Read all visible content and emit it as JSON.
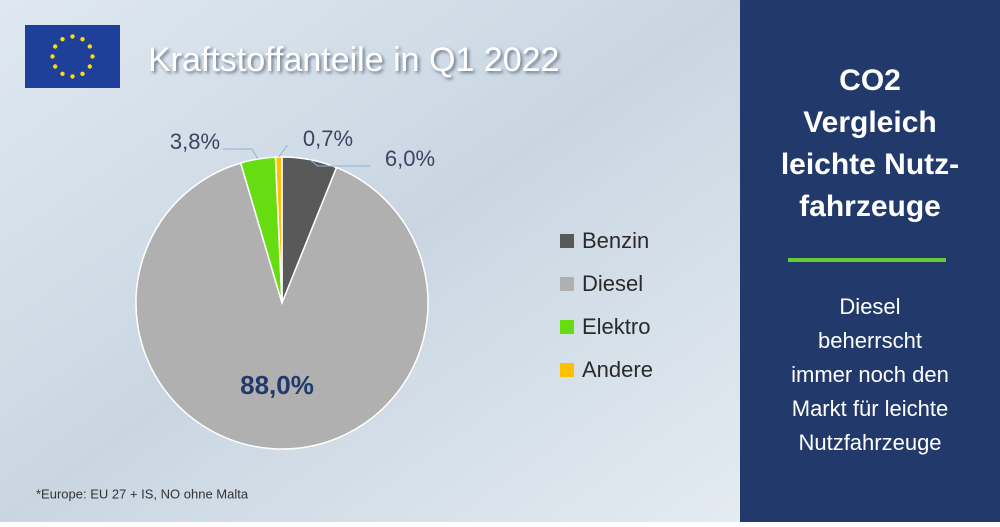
{
  "chart_data": {
    "type": "pie",
    "title": "Kraftstoffanteile in Q1 2022",
    "categories": [
      "Benzin",
      "Diesel",
      "Elektro",
      "Andere"
    ],
    "values": [
      6.0,
      88.0,
      3.8,
      0.7
    ],
    "value_labels": [
      "6,0%",
      "88,0%",
      "3,8%",
      "0,7%"
    ],
    "colors": [
      "#595959",
      "#b0b0b0",
      "#66dd11",
      "#ffc000"
    ],
    "legend": "right",
    "footnote": "*Europe: EU 27 + IS, NO ohne Malta"
  },
  "side_panel": {
    "title": [
      "CO2",
      "Vergleich",
      "leichte Nutz-",
      "fahrzeuge"
    ],
    "text": [
      "Diesel",
      "beherrscht",
      "immer noch den",
      "Markt für leichte",
      "Nutzfahrzeuge"
    ]
  }
}
